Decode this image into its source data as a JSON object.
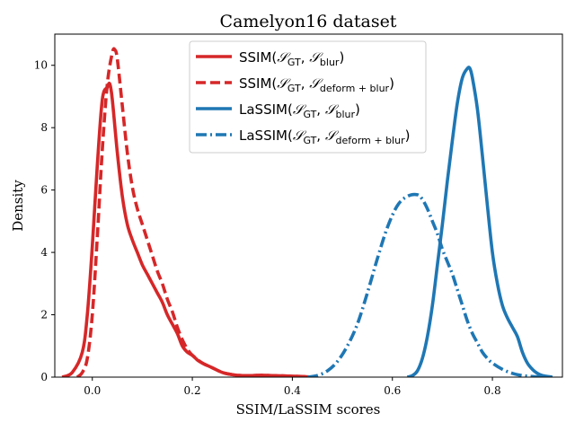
{
  "chart_data": {
    "type": "line",
    "title": "Camelyon16 dataset",
    "xlabel": "SSIM/LaSSIM scores",
    "ylabel": "Density",
    "xlim": [
      -0.075,
      0.94
    ],
    "ylim": [
      0,
      11
    ],
    "xticks": [
      0.0,
      0.2,
      0.4,
      0.6,
      0.8
    ],
    "xtick_labels": [
      "0.0",
      "0.2",
      "0.4",
      "0.6",
      "0.8"
    ],
    "yticks": [
      0,
      2,
      4,
      6,
      8,
      10
    ],
    "ytick_labels": [
      "0",
      "2",
      "4",
      "6",
      "8",
      "10"
    ],
    "grid": false,
    "legend_position": "top-center",
    "series": [
      {
        "name": "SSIM(𝒮GT, 𝒮blur)",
        "legend": {
          "base": "SSIM(",
          "sub1": "GT",
          "sub2": "blur"
        },
        "color": "#d62728",
        "style": "solid",
        "x": [
          -0.06,
          -0.04,
          -0.02,
          -0.01,
          0.0,
          0.01,
          0.02,
          0.03,
          0.035,
          0.04,
          0.05,
          0.06,
          0.07,
          0.08,
          0.09,
          0.1,
          0.11,
          0.12,
          0.13,
          0.14,
          0.15,
          0.16,
          0.17,
          0.18,
          0.19,
          0.2,
          0.21,
          0.22,
          0.24,
          0.26,
          0.28,
          0.3,
          0.32,
          0.34,
          0.36,
          0.38,
          0.4,
          0.42,
          0.44
        ],
        "y": [
          0.0,
          0.15,
          0.8,
          2.0,
          4.2,
          6.8,
          8.9,
          9.3,
          9.4,
          8.9,
          7.2,
          5.8,
          4.9,
          4.4,
          4.0,
          3.6,
          3.3,
          3.0,
          2.7,
          2.4,
          2.0,
          1.7,
          1.4,
          1.0,
          0.8,
          0.7,
          0.55,
          0.45,
          0.3,
          0.15,
          0.08,
          0.05,
          0.05,
          0.06,
          0.05,
          0.04,
          0.03,
          0.02,
          0.0
        ]
      },
      {
        "name": "SSIM(𝒮GT, 𝒮deform+blur)",
        "legend": {
          "base": "SSIM(",
          "sub1": "GT",
          "sub2": "deform + blur"
        },
        "color": "#d62728",
        "style": "dashed",
        "x": [
          -0.03,
          -0.02,
          -0.01,
          0.0,
          0.01,
          0.02,
          0.03,
          0.04,
          0.045,
          0.05,
          0.06,
          0.07,
          0.08,
          0.09,
          0.1,
          0.11,
          0.12,
          0.13,
          0.14,
          0.15,
          0.16,
          0.17,
          0.18,
          0.19,
          0.2,
          0.22,
          0.24,
          0.26,
          0.28,
          0.3,
          0.32,
          0.34,
          0.36,
          0.38,
          0.4,
          0.42,
          0.44
        ],
        "y": [
          0.0,
          0.15,
          0.6,
          2.0,
          4.5,
          7.3,
          9.4,
          10.4,
          10.5,
          10.2,
          8.7,
          7.2,
          6.1,
          5.4,
          4.9,
          4.4,
          3.9,
          3.4,
          3.0,
          2.5,
          2.1,
          1.6,
          1.2,
          0.9,
          0.7,
          0.45,
          0.3,
          0.15,
          0.08,
          0.05,
          0.05,
          0.06,
          0.05,
          0.04,
          0.03,
          0.02,
          0.0
        ]
      },
      {
        "name": "LaSSIM(𝒮GT, 𝒮blur)",
        "legend": {
          "base": "LaSSIM(",
          "sub1": "GT",
          "sub2": "blur"
        },
        "color": "#1f77b4",
        "style": "solid",
        "x": [
          0.63,
          0.64,
          0.65,
          0.66,
          0.67,
          0.68,
          0.69,
          0.7,
          0.71,
          0.72,
          0.73,
          0.74,
          0.75,
          0.755,
          0.76,
          0.77,
          0.78,
          0.79,
          0.8,
          0.81,
          0.82,
          0.83,
          0.84,
          0.85,
          0.86,
          0.87,
          0.88,
          0.89,
          0.9,
          0.92
        ],
        "y": [
          0.0,
          0.05,
          0.2,
          0.6,
          1.3,
          2.3,
          3.6,
          4.9,
          6.3,
          7.6,
          8.8,
          9.6,
          9.9,
          9.9,
          9.6,
          8.6,
          7.1,
          5.5,
          4.0,
          3.0,
          2.3,
          1.9,
          1.6,
          1.3,
          0.8,
          0.45,
          0.25,
          0.12,
          0.05,
          0.0
        ]
      },
      {
        "name": "LaSSIM(𝒮GT, 𝒮deform+blur)",
        "legend": {
          "base": "LaSSIM(",
          "sub1": "GT",
          "sub2": "deform + blur"
        },
        "color": "#1f77b4",
        "style": "dashdot",
        "x": [
          0.43,
          0.45,
          0.47,
          0.49,
          0.51,
          0.53,
          0.55,
          0.57,
          0.59,
          0.61,
          0.63,
          0.65,
          0.66,
          0.67,
          0.68,
          0.69,
          0.7,
          0.71,
          0.72,
          0.73,
          0.74,
          0.75,
          0.76,
          0.77,
          0.78,
          0.79,
          0.8,
          0.82,
          0.84,
          0.86,
          0.88,
          0.9
        ],
        "y": [
          0.0,
          0.05,
          0.2,
          0.5,
          1.0,
          1.7,
          2.7,
          3.8,
          4.8,
          5.5,
          5.8,
          5.85,
          5.7,
          5.4,
          5.0,
          4.6,
          4.1,
          3.7,
          3.3,
          2.8,
          2.3,
          1.8,
          1.4,
          1.1,
          0.8,
          0.6,
          0.45,
          0.25,
          0.12,
          0.05,
          0.02,
          0.0
        ]
      }
    ]
  }
}
